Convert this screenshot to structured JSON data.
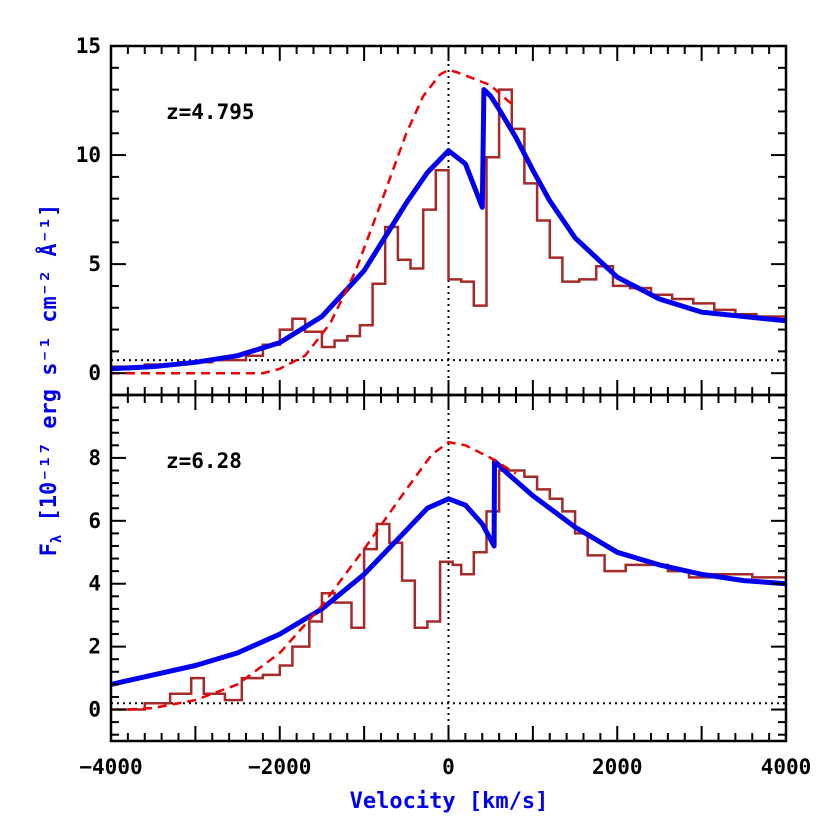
{
  "colors": {
    "model": "#0000ee",
    "intrinsic": "#ee0000",
    "observed": "#a52a2a",
    "reference": "#000000",
    "label": "#0000ee"
  },
  "xaxis": {
    "label": "Velocity [km/s]",
    "lim": [
      -4000,
      4000
    ],
    "ticks": [
      -4000,
      -2000,
      0,
      2000,
      4000
    ]
  },
  "yaxis": {
    "label_main": "F",
    "label_sub": "λ",
    "label_rest": " [10⁻¹⁷ erg s⁻¹ cm⁻² Å⁻¹]"
  },
  "chart_data": [
    {
      "type": "line",
      "panel": "top",
      "annotation": "z=4.795",
      "ylim": [
        -1,
        15
      ],
      "yticks": [
        0,
        5,
        10,
        15
      ],
      "continuum_level": 0.6,
      "series": [
        {
          "name": "observed",
          "style": "step",
          "x": [
            -4000,
            -3600,
            -3200,
            -2800,
            -2400,
            -2200,
            -2000,
            -1850,
            -1700,
            -1500,
            -1350,
            -1200,
            -1050,
            -900,
            -750,
            -600,
            -450,
            -300,
            -150,
            0,
            150,
            300,
            450,
            600,
            750,
            900,
            1050,
            1200,
            1350,
            1550,
            1750,
            1950,
            2150,
            2400,
            2650,
            2900,
            3150,
            3400,
            3650,
            4000
          ],
          "y": [
            0.3,
            0.4,
            0.5,
            0.6,
            0.8,
            1.3,
            2.0,
            2.5,
            1.9,
            1.2,
            1.5,
            1.7,
            2.2,
            4.1,
            6.7,
            5.2,
            4.8,
            7.5,
            9.3,
            4.3,
            4.2,
            3.1,
            9.9,
            13.0,
            11.2,
            8.7,
            7.0,
            5.3,
            4.2,
            4.3,
            4.9,
            4.0,
            3.9,
            3.6,
            3.4,
            3.2,
            2.9,
            2.7,
            2.6,
            2.5
          ]
        },
        {
          "name": "model",
          "style": "line",
          "x": [
            -4000,
            -3500,
            -3000,
            -2500,
            -2000,
            -1500,
            -1000,
            -500,
            -250,
            0,
            200,
            400,
            420,
            500,
            600,
            800,
            1000,
            1200,
            1500,
            2000,
            2500,
            3000,
            3500,
            4000
          ],
          "y": [
            0.2,
            0.3,
            0.5,
            0.8,
            1.4,
            2.6,
            4.7,
            7.8,
            9.2,
            10.2,
            9.6,
            7.6,
            13.0,
            12.7,
            12.1,
            10.8,
            9.3,
            7.9,
            6.2,
            4.4,
            3.4,
            2.8,
            2.6,
            2.4
          ]
        },
        {
          "name": "intrinsic",
          "style": "dashed",
          "x": [
            -4000,
            -3000,
            -2200,
            -2000,
            -1700,
            -1400,
            -1100,
            -800,
            -500,
            -300,
            -100,
            0,
            100,
            300,
            500,
            700,
            800
          ],
          "y": [
            0.0,
            0.0,
            0.0,
            0.2,
            0.8,
            2.3,
            4.7,
            7.8,
            11.0,
            12.7,
            13.7,
            13.9,
            13.8,
            13.5,
            13.2,
            12.5,
            12.2
          ]
        }
      ]
    },
    {
      "type": "line",
      "panel": "bottom",
      "annotation": "z=6.28",
      "ylim": [
        -1,
        10
      ],
      "yticks": [
        0,
        2,
        4,
        6,
        8
      ],
      "continuum_level": 0.2,
      "series": [
        {
          "name": "observed",
          "style": "step",
          "x": [
            -4000,
            -3600,
            -3300,
            -3050,
            -2900,
            -2650,
            -2450,
            -2200,
            -2000,
            -1850,
            -1650,
            -1500,
            -1350,
            -1150,
            -1000,
            -850,
            -700,
            -550,
            -400,
            -250,
            -100,
            50,
            150,
            300,
            450,
            600,
            750,
            900,
            1050,
            1200,
            1350,
            1500,
            1650,
            1850,
            2100,
            2350,
            2600,
            2850,
            3100,
            3350,
            3600,
            4000
          ],
          "y": [
            0.0,
            0.2,
            0.5,
            1.0,
            0.5,
            0.3,
            1.0,
            1.1,
            1.4,
            2.0,
            2.8,
            3.7,
            3.4,
            2.6,
            5.1,
            5.9,
            5.3,
            4.1,
            2.6,
            2.8,
            4.7,
            4.6,
            4.3,
            5.0,
            6.3,
            7.6,
            7.6,
            7.4,
            7.0,
            6.7,
            6.3,
            5.6,
            4.9,
            4.4,
            4.6,
            4.6,
            4.4,
            4.2,
            4.3,
            4.3,
            4.2,
            4.0
          ]
        },
        {
          "name": "model",
          "style": "line",
          "x": [
            -4000,
            -3500,
            -3000,
            -2500,
            -2000,
            -1500,
            -1000,
            -500,
            -250,
            0,
            200,
            400,
            540,
            545,
            700,
            1000,
            1500,
            2000,
            2500,
            3000,
            3500,
            4000
          ],
          "y": [
            0.8,
            1.1,
            1.4,
            1.8,
            2.4,
            3.2,
            4.3,
            5.7,
            6.4,
            6.7,
            6.5,
            5.9,
            5.2,
            7.9,
            7.5,
            6.8,
            5.8,
            5.0,
            4.6,
            4.3,
            4.1,
            4.0
          ]
        },
        {
          "name": "intrinsic",
          "style": "dashed",
          "x": [
            -3800,
            -3500,
            -3000,
            -2500,
            -2000,
            -1500,
            -1000,
            -500,
            -200,
            0,
            200,
            500,
            800
          ],
          "y": [
            0.0,
            0.05,
            0.3,
            0.8,
            1.8,
            3.3,
            5.1,
            7.0,
            8.1,
            8.5,
            8.4,
            8.0,
            7.5
          ]
        }
      ]
    }
  ]
}
